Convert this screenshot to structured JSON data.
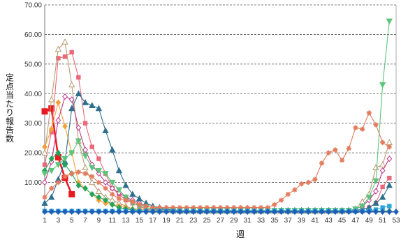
{
  "chart_data": {
    "type": "line",
    "title": "",
    "xlabel": "週",
    "ylabel": "定点当たり報告数",
    "xlim": [
      1,
      53
    ],
    "ylim": [
      0,
      70
    ],
    "grid": true,
    "x_ticks": [
      1,
      3,
      5,
      7,
      9,
      11,
      13,
      15,
      17,
      19,
      21,
      23,
      25,
      27,
      29,
      31,
      33,
      35,
      37,
      39,
      41,
      43,
      45,
      47,
      49,
      51,
      53
    ],
    "y_ticks": [
      "10.00",
      "20.00",
      "30.00",
      "40.00",
      "50.00",
      "60.00",
      "70.00"
    ],
    "y_tick_values": [
      10,
      20,
      30,
      40,
      50,
      60,
      70
    ],
    "series": [
      {
        "color": "#e8191f",
        "marker": "square-large",
        "width": 2.5,
        "x": [
          1,
          2,
          3,
          4,
          5
        ],
        "y": [
          34.0,
          35.0,
          18.5,
          11.5,
          6.0
        ]
      },
      {
        "color": "#e9687a",
        "marker": "square",
        "x": [
          1,
          2,
          3,
          4,
          5,
          6,
          7,
          8,
          9,
          10,
          11,
          12,
          13,
          14,
          15,
          16,
          17,
          18,
          19,
          20,
          21,
          22,
          23,
          24,
          25,
          26,
          27,
          28,
          29,
          30,
          31,
          32,
          33,
          34,
          35,
          36,
          37,
          38,
          39,
          40,
          41,
          42,
          43,
          44,
          45,
          46,
          47,
          48,
          49,
          50,
          51,
          52
        ],
        "y": [
          16.0,
          27.0,
          52.0,
          52.5,
          54.0,
          45.5,
          30.0,
          22.0,
          18.0,
          13.0,
          8.0,
          6.0,
          4.0,
          3.0,
          2.0,
          1.0,
          0.8,
          0.5,
          0.4,
          0.3,
          0.3,
          0.3,
          0.3,
          0.3,
          0.3,
          0.3,
          0.3,
          0.3,
          0.3,
          0.3,
          0.3,
          0.3,
          0.3,
          0.3,
          0.3,
          0.3,
          0.3,
          0.3,
          0.3,
          0.3,
          0.3,
          0.3,
          0.3,
          0.3,
          0.3,
          0.3,
          0.5,
          0.8,
          1.5,
          3.0,
          8.5,
          11.5
        ]
      },
      {
        "color": "#b99c72",
        "marker": "triangle-open",
        "x": [
          1,
          2,
          3,
          4,
          5,
          6,
          7,
          8,
          9,
          10,
          11,
          12,
          13,
          14,
          15,
          16,
          17,
          18,
          19,
          20,
          21,
          22,
          23,
          24,
          25,
          26,
          27,
          28,
          29,
          30,
          31,
          32,
          33,
          34,
          35,
          36,
          37,
          38,
          39,
          40,
          41,
          42,
          43,
          44,
          45,
          46,
          47,
          48,
          49,
          50,
          51,
          52
        ],
        "y": [
          20.0,
          38.0,
          55.0,
          57.5,
          43.0,
          24.0,
          15.0,
          10.0,
          7.0,
          5.0,
          4.0,
          3.0,
          2.0,
          1.0,
          1.0,
          0.8,
          0.5,
          0.5,
          0.4,
          0.3,
          0.3,
          0.3,
          0.3,
          0.3,
          0.3,
          0.3,
          0.3,
          0.3,
          0.3,
          0.3,
          0.3,
          0.3,
          0.3,
          0.3,
          0.3,
          0.3,
          0.3,
          0.3,
          0.3,
          0.3,
          0.3,
          0.3,
          0.3,
          0.3,
          0.3,
          0.5,
          1.0,
          3.5,
          6.0,
          15.0,
          16.0,
          23.5
        ]
      },
      {
        "color": "#f2a23a",
        "marker": "diamond",
        "x": [
          1,
          2,
          3,
          4,
          5,
          6,
          7,
          8,
          9,
          10,
          11,
          12,
          13,
          14,
          15,
          16,
          17,
          18,
          19,
          20,
          21,
          22,
          23,
          24,
          25,
          26,
          27,
          28,
          29,
          30,
          31,
          32,
          33,
          34,
          35,
          36,
          37,
          38,
          39,
          40,
          41,
          42,
          43,
          44,
          45,
          46,
          47,
          48,
          49,
          50,
          51,
          52
        ],
        "y": [
          22.0,
          28.0,
          37.0,
          29.0,
          20.0,
          10.0,
          8.0,
          6.0,
          4.0,
          3.0,
          2.5,
          2.0,
          1.5,
          1.0,
          1.0,
          0.8,
          0.5,
          0.5,
          0.4,
          0.3,
          0.3,
          0.3,
          0.3,
          0.3,
          0.3,
          0.3,
          0.3,
          0.3,
          0.3,
          0.3,
          0.3,
          0.3,
          0.3,
          0.3,
          0.3,
          0.3,
          0.3,
          0.3,
          0.3,
          0.3,
          0.3,
          0.3,
          0.3,
          0.3,
          0.3,
          0.3,
          0.3,
          0.3,
          0.3,
          0.3,
          0.3,
          0.3
        ]
      },
      {
        "color": "#c0358a",
        "marker": "diamond-open",
        "x": [
          1,
          2,
          3,
          4,
          5,
          6,
          7,
          8,
          9,
          10,
          11,
          12,
          13,
          14,
          15,
          16,
          17,
          18,
          19,
          20,
          21,
          22,
          23,
          24,
          25,
          26,
          27,
          28,
          29,
          30,
          31,
          32,
          33,
          34,
          35,
          36,
          37,
          38,
          39,
          40,
          41,
          42,
          43,
          44,
          45,
          46,
          47,
          48,
          49,
          50,
          51,
          52
        ],
        "y": [
          10.0,
          17.0,
          31.0,
          39.0,
          38.0,
          28.5,
          21.0,
          16.0,
          13.0,
          10.0,
          8.0,
          6.5,
          5.0,
          4.0,
          3.0,
          2.0,
          1.5,
          1.0,
          0.8,
          0.5,
          0.5,
          0.5,
          0.5,
          0.5,
          0.5,
          0.5,
          0.5,
          0.5,
          0.5,
          0.5,
          0.5,
          0.5,
          0.5,
          0.5,
          0.5,
          0.5,
          0.5,
          0.5,
          0.5,
          0.5,
          0.5,
          0.5,
          0.5,
          0.5,
          0.5,
          0.5,
          1.0,
          2.0,
          4.0,
          7.0,
          14.0,
          18.0
        ]
      },
      {
        "color": "#2e6f8e",
        "marker": "triangle",
        "x": [
          1,
          2,
          3,
          4,
          5,
          6,
          7,
          8,
          9,
          10,
          11,
          12,
          13,
          14,
          15,
          16,
          17,
          18,
          19,
          20,
          21,
          22,
          23,
          24,
          25,
          26,
          27,
          28,
          29,
          30,
          31,
          32,
          33,
          34,
          35,
          36,
          37,
          38,
          39,
          40,
          41,
          42,
          43,
          44,
          45,
          46,
          47,
          48,
          49,
          50,
          51,
          52
        ],
        "y": [
          3.0,
          5.0,
          11.0,
          17.0,
          35.0,
          40.0,
          37.0,
          36.0,
          35.0,
          27.5,
          21.0,
          14.0,
          9.0,
          6.0,
          4.5,
          3.0,
          2.0,
          1.5,
          1.0,
          0.8,
          0.5,
          0.5,
          0.5,
          0.5,
          0.5,
          0.5,
          0.5,
          0.5,
          0.5,
          0.5,
          0.5,
          0.5,
          0.5,
          0.5,
          0.5,
          0.5,
          0.5,
          0.5,
          0.5,
          0.5,
          0.5,
          0.5,
          0.5,
          0.5,
          0.5,
          0.5,
          0.5,
          1.0,
          1.5,
          3.0,
          5.0,
          9.0
        ]
      },
      {
        "color": "#23a559",
        "marker": "diamond",
        "x": [
          1,
          2,
          3,
          4,
          5,
          6,
          7,
          8,
          9,
          10,
          11,
          12,
          13,
          14,
          15,
          16,
          17,
          18,
          19,
          20,
          21,
          22,
          23,
          24,
          25,
          26,
          27,
          28,
          29,
          30,
          31,
          32,
          33,
          34,
          35,
          36,
          37,
          38,
          39,
          40,
          41,
          42,
          43,
          44,
          45,
          46,
          47,
          48,
          49,
          50,
          51,
          52
        ],
        "y": [
          14.0,
          18.0,
          20.0,
          16.0,
          13.0,
          9.0,
          8.0,
          6.0,
          5.0,
          4.0,
          2.5,
          1.5,
          1.0,
          0.8,
          0.5,
          0.4,
          0.3,
          0.3,
          0.3,
          0.3,
          0.3,
          0.3,
          0.3,
          0.3,
          0.3,
          0.3,
          0.3,
          0.3,
          0.3,
          0.3,
          0.3,
          0.3,
          0.3,
          0.3,
          0.3,
          0.3,
          0.3,
          0.3,
          0.3,
          0.3,
          0.3,
          0.3,
          0.3,
          0.3,
          0.3,
          0.3,
          0.3,
          0.3,
          0.3,
          0.3,
          0.3,
          0.3
        ]
      },
      {
        "color": "#5cc47a",
        "marker": "triangle-down",
        "x": [
          1,
          2,
          3,
          4,
          5,
          6,
          7,
          8,
          9,
          10,
          11,
          12,
          13,
          14,
          15,
          16,
          17,
          18,
          19,
          20,
          21,
          22,
          23,
          24,
          25,
          26,
          27,
          28,
          29,
          30,
          31,
          32,
          33,
          34,
          35,
          36,
          37,
          38,
          39,
          40,
          41,
          42,
          43,
          44,
          45,
          46,
          47,
          48,
          49,
          50,
          51,
          52
        ],
        "y": [
          13.0,
          14.0,
          16.0,
          18.0,
          20.0,
          24.0,
          19.0,
          15.0,
          14.0,
          13.0,
          10.0,
          7.5,
          5.0,
          3.0,
          2.0,
          1.5,
          1.0,
          0.8,
          0.5,
          0.5,
          0.5,
          0.5,
          0.5,
          0.5,
          0.5,
          0.5,
          0.5,
          0.5,
          0.5,
          0.5,
          0.5,
          0.5,
          0.5,
          0.5,
          0.5,
          0.5,
          0.5,
          0.5,
          0.5,
          0.5,
          0.5,
          0.5,
          0.5,
          0.5,
          0.5,
          0.5,
          1.0,
          2.0,
          5.0,
          10.5,
          43.0,
          64.5
        ]
      },
      {
        "color": "#e27c5d",
        "marker": "star",
        "x": [
          1,
          2,
          3,
          4,
          5,
          6,
          7,
          8,
          9,
          10,
          11,
          12,
          13,
          14,
          15,
          16,
          17,
          18,
          19,
          20,
          21,
          22,
          23,
          24,
          25,
          26,
          27,
          28,
          29,
          30,
          31,
          32,
          33,
          34,
          35,
          36,
          37,
          38,
          39,
          40,
          41,
          42,
          43,
          44,
          45,
          46,
          47,
          48,
          49,
          50,
          51,
          52
        ],
        "y": [
          5.0,
          8.0,
          10.0,
          12.0,
          13.0,
          13.5,
          13.0,
          12.0,
          10.0,
          8.0,
          6.0,
          4.5,
          4.0,
          3.5,
          2.5,
          2.0,
          1.5,
          1.5,
          1.5,
          1.5,
          1.5,
          1.5,
          1.5,
          1.5,
          1.5,
          1.5,
          1.5,
          1.5,
          1.5,
          1.5,
          1.5,
          1.5,
          1.5,
          1.5,
          2.5,
          4.0,
          6.0,
          7.5,
          9.5,
          10.0,
          11.0,
          16.5,
          20.0,
          21.0,
          17.5,
          21.5,
          28.5,
          28.0,
          33.5,
          29.5,
          23.5,
          22.0
        ]
      },
      {
        "color": "#2aa6dd",
        "marker": "square",
        "x": [
          1,
          2,
          3,
          4,
          5,
          6,
          7,
          8,
          9,
          10,
          11,
          12,
          13,
          14,
          15,
          16,
          17,
          18,
          19,
          20,
          21,
          22,
          23,
          24,
          25,
          26,
          27,
          28,
          29,
          30,
          31,
          32,
          33,
          34,
          35,
          36,
          37,
          38,
          39,
          40,
          41,
          42,
          43,
          44,
          45,
          46,
          47,
          48,
          49,
          50,
          51,
          52
        ],
        "y": [
          0.3,
          0.3,
          0.3,
          0.3,
          0.3,
          0.3,
          0.3,
          0.3,
          0.3,
          0.3,
          0.3,
          0.3,
          0.3,
          0.3,
          0.3,
          0.3,
          0.3,
          0.3,
          0.3,
          0.3,
          0.3,
          0.3,
          0.3,
          0.3,
          0.3,
          0.3,
          0.3,
          0.3,
          0.3,
          0.3,
          0.3,
          0.3,
          0.3,
          0.3,
          0.3,
          0.3,
          0.3,
          0.3,
          0.3,
          0.3,
          0.3,
          0.3,
          0.3,
          0.3,
          0.3,
          0.3,
          0.3,
          0.3,
          0.5,
          0.8,
          1.5,
          2.0
        ]
      },
      {
        "color": "#1f5fb8",
        "marker": "diamond",
        "x": [
          1,
          2,
          3,
          4,
          5,
          6,
          7,
          8,
          9,
          10,
          11,
          12,
          13,
          14,
          15,
          16,
          17,
          18,
          19,
          20,
          21,
          22,
          23,
          24,
          25,
          26,
          27,
          28,
          29,
          30,
          31,
          32,
          33,
          34,
          35,
          36,
          37,
          38,
          39,
          40,
          41,
          42,
          43,
          44,
          45,
          46,
          47,
          48,
          49,
          50,
          51,
          52,
          53
        ],
        "y": [
          0.1,
          0.1,
          0.1,
          0.1,
          0.1,
          0.1,
          0.1,
          0.1,
          0.1,
          0.1,
          0.1,
          0.1,
          0.1,
          0.1,
          0.1,
          0.1,
          0.1,
          0.1,
          0.1,
          0.1,
          0.1,
          0.1,
          0.1,
          0.1,
          0.1,
          0.1,
          0.1,
          0.1,
          0.1,
          0.1,
          0.1,
          0.1,
          0.1,
          0.1,
          0.1,
          0.1,
          0.1,
          0.1,
          0.1,
          0.1,
          0.1,
          0.1,
          0.1,
          0.1,
          0.1,
          0.1,
          0.1,
          0.1,
          0.1,
          0.1,
          0.1,
          0.1,
          0.1
        ]
      }
    ]
  }
}
